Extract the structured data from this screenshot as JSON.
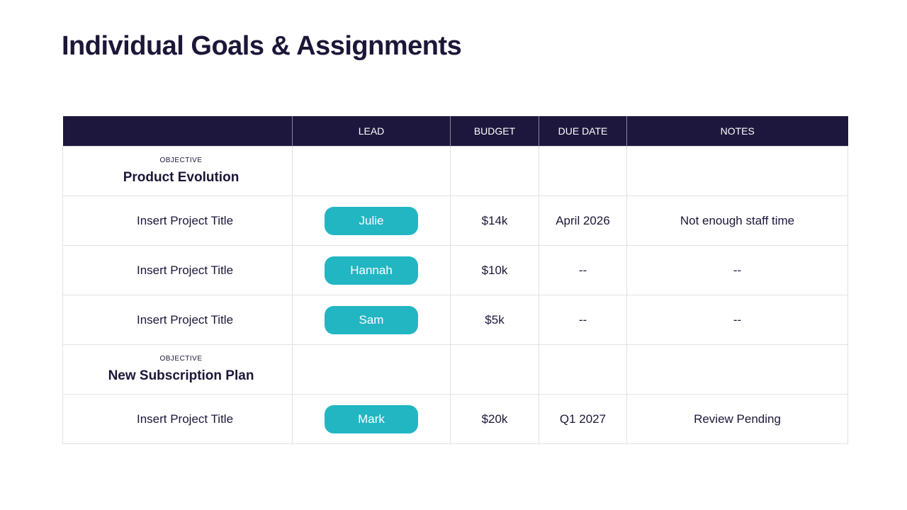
{
  "title": "Individual Goals & Assignments",
  "table": {
    "columns": [
      "LEAD",
      "BUDGET",
      "DUE DATE",
      "NOTES"
    ],
    "groups": [
      {
        "label": "OBJECTIVE",
        "name": "Product Evolution",
        "rows": [
          {
            "project": "Insert Project Title",
            "lead": "Julie",
            "budget": "$14k",
            "due": "April 2026",
            "notes": "Not enough staff time"
          },
          {
            "project": "Insert Project Title",
            "lead": "Hannah",
            "budget": "$10k",
            "due": "--",
            "notes": "--"
          },
          {
            "project": "Insert Project Title",
            "lead": "Sam",
            "budget": "$5k",
            "due": "--",
            "notes": "--"
          }
        ]
      },
      {
        "label": "OBJECTIVE",
        "name": "New Subscription Plan",
        "rows": [
          {
            "project": "Insert Project Title",
            "lead": "Mark",
            "budget": "$20k",
            "due": "Q1 2027",
            "notes": "Review Pending"
          }
        ]
      }
    ]
  }
}
